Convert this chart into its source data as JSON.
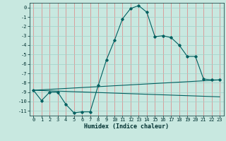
{
  "title": "",
  "xlabel": "Humidex (Indice chaleur)",
  "bg_color": "#c8e8e0",
  "grid_color_v": "#e08080",
  "grid_color_h": "#a0d0c8",
  "line_color": "#006060",
  "xlim": [
    -0.5,
    23.5
  ],
  "ylim": [
    -11.5,
    0.5
  ],
  "xticks": [
    0,
    1,
    2,
    3,
    4,
    5,
    6,
    7,
    8,
    9,
    10,
    11,
    12,
    13,
    14,
    15,
    16,
    17,
    18,
    19,
    20,
    21,
    22,
    23
  ],
  "yticks": [
    0,
    -1,
    -2,
    -3,
    -4,
    -5,
    -6,
    -7,
    -8,
    -9,
    -10,
    -11
  ],
  "curve1_x": [
    0,
    1,
    2,
    3,
    4,
    5,
    6,
    7,
    8,
    9,
    10,
    11,
    12,
    13,
    14,
    15,
    16,
    17,
    18,
    19,
    20,
    21,
    22,
    23
  ],
  "curve1_y": [
    -8.8,
    -9.9,
    -9.0,
    -9.0,
    -10.3,
    -11.2,
    -11.1,
    -11.1,
    -8.3,
    -5.6,
    -3.5,
    -1.2,
    -0.1,
    0.2,
    -0.5,
    -3.1,
    -3.0,
    -3.2,
    -4.0,
    -5.2,
    -5.2,
    -7.6,
    -7.7,
    -7.7
  ],
  "curve2_x": [
    0,
    23
  ],
  "curve2_y": [
    -8.8,
    -7.7
  ],
  "curve3_x": [
    0,
    23
  ],
  "curve3_y": [
    -8.8,
    -9.5
  ],
  "font_color": "#003030",
  "tick_fontsize": 5,
  "label_fontsize": 6
}
